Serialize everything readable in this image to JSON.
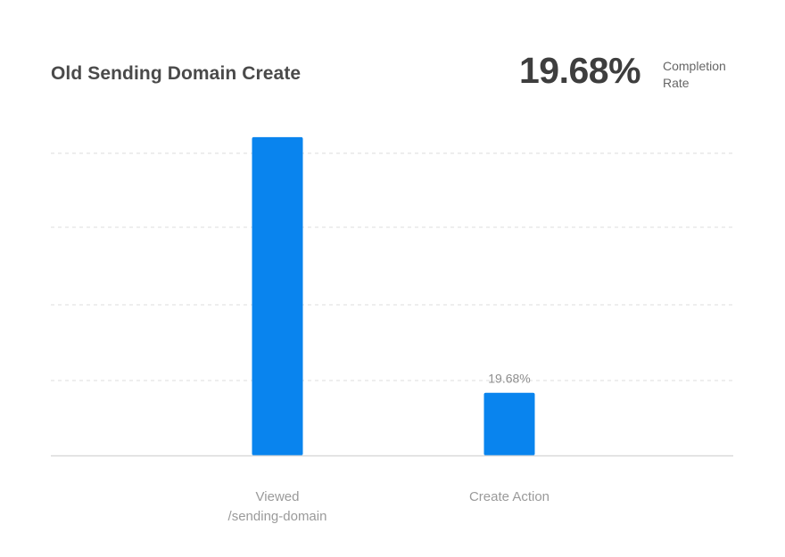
{
  "header": {
    "title": "Old Sending Domain Create",
    "kpi_value": "19.68%",
    "kpi_label_line1": "Completion",
    "kpi_label_line2": "Rate"
  },
  "colors": {
    "bar": "#0984ee",
    "gridline": "#dddddd",
    "baseline": "#d9d9d9"
  },
  "chart_data": {
    "type": "bar",
    "title": "Old Sending Domain Create",
    "categories": [
      [
        "Viewed",
        "/sending-domain"
      ],
      [
        "Create Action"
      ]
    ],
    "values": [
      100,
      19.68
    ],
    "data_labels": [
      "",
      "19.68%"
    ],
    "unit": "%",
    "ylim": [
      0,
      105
    ],
    "grid": true,
    "legend": "none"
  }
}
